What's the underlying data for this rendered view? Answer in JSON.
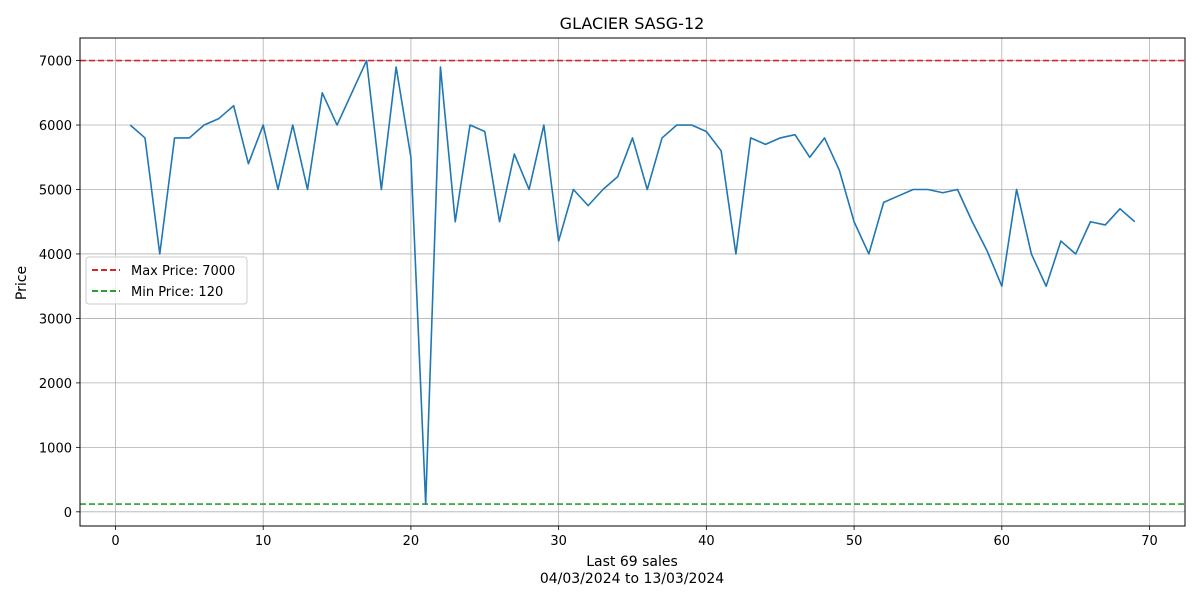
{
  "chart_data": {
    "type": "line",
    "title": "GLACIER SASG-12",
    "xlabel": "Last 69 sales",
    "xlabel2": "04/03/2024 to 13/03/2024",
    "ylabel": "Price",
    "xlim": [
      -2.4,
      72.4
    ],
    "ylim": [
      -220,
      7350
    ],
    "xticks": [
      0,
      10,
      20,
      30,
      40,
      50,
      60,
      70
    ],
    "yticks": [
      0,
      1000,
      2000,
      3000,
      4000,
      5000,
      6000,
      7000
    ],
    "grid": true,
    "legend_position": "center-left",
    "series": [
      {
        "color": "#1f77b4",
        "x": [
          1,
          2,
          3,
          4,
          5,
          6,
          7,
          8,
          9,
          10,
          11,
          12,
          13,
          14,
          15,
          16,
          17,
          18,
          19,
          20,
          21,
          22,
          23,
          24,
          25,
          26,
          27,
          28,
          29,
          30,
          31,
          32,
          33,
          34,
          35,
          36,
          37,
          38,
          39,
          40,
          41,
          42,
          43,
          44,
          45,
          46,
          47,
          48,
          49,
          50,
          51,
          52,
          53,
          54,
          55,
          56,
          57,
          58,
          59,
          60,
          61,
          62,
          63,
          64,
          65,
          66,
          67,
          68,
          69
        ],
        "y": [
          6000,
          5800,
          4000,
          5800,
          5800,
          6000,
          6100,
          6300,
          5400,
          6000,
          5000,
          6000,
          5000,
          6500,
          6000,
          6500,
          7000,
          5000,
          6900,
          5500,
          120,
          6900,
          4500,
          6000,
          5900,
          4500,
          5550,
          5000,
          6000,
          4200,
          5000,
          4750,
          5000,
          5200,
          5800,
          5000,
          5800,
          6000,
          6000,
          5900,
          5600,
          4000,
          5800,
          5700,
          5800,
          5850,
          5500,
          5800,
          5300,
          4500,
          4000,
          4800,
          4900,
          5000,
          5000,
          4950,
          5000,
          4500,
          4050,
          3500,
          5000,
          4000,
          3500,
          4200,
          4000,
          4500,
          4450,
          4700,
          4500
        ]
      }
    ],
    "reference_lines": [
      {
        "name": "Max Price: 7000",
        "value": 7000,
        "color": "#d62728"
      },
      {
        "name": "Min Price: 120",
        "value": 120,
        "color": "#2ca02c"
      }
    ]
  }
}
